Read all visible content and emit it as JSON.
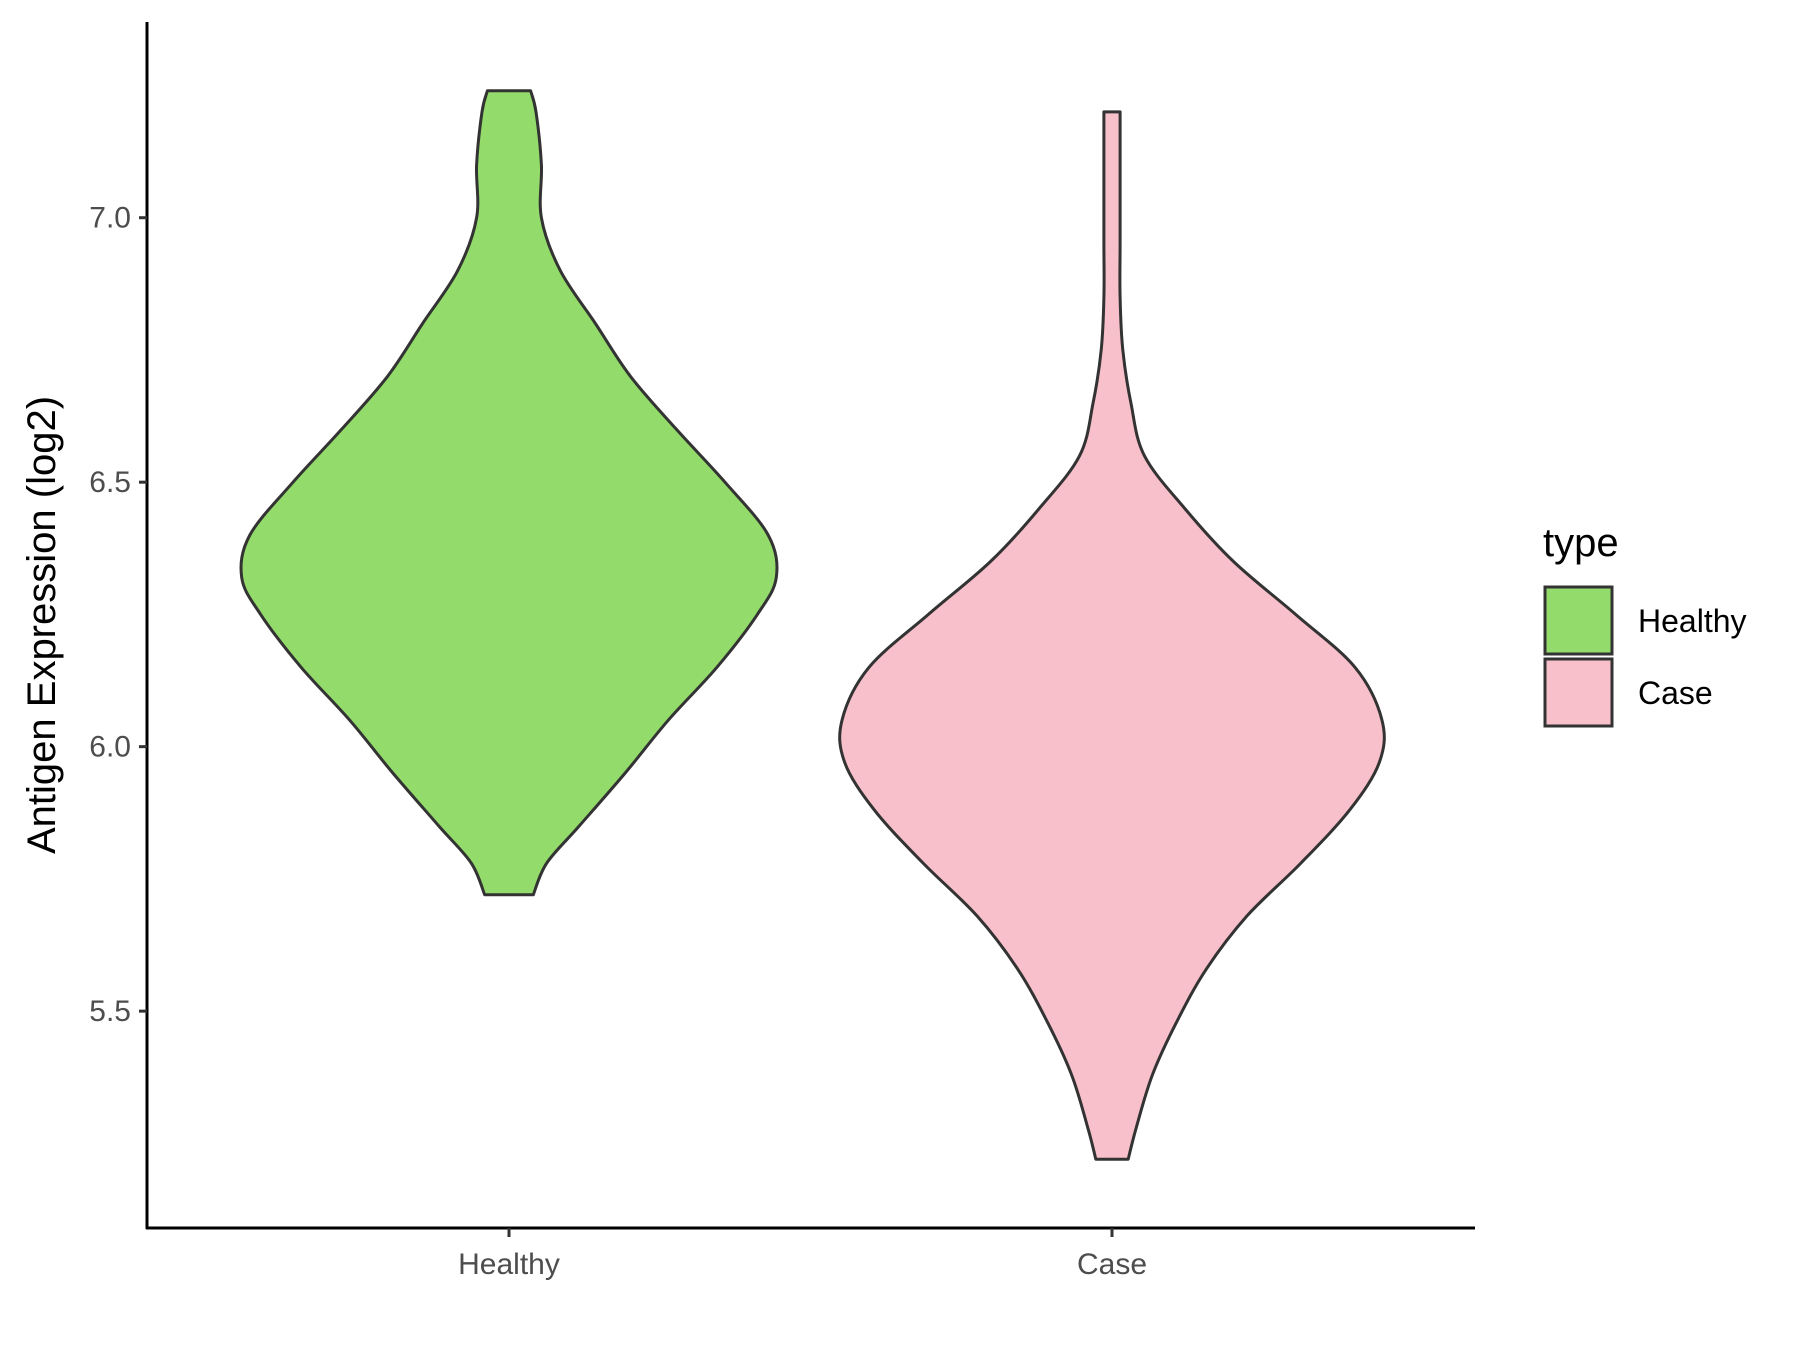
{
  "chart_data": {
    "type": "violin",
    "title": "",
    "xlabel": "",
    "ylabel": "Antigen Expression (log2)",
    "ylim": [
      5.09,
      7.37
    ],
    "yticks": [
      5.5,
      6.0,
      6.5,
      7.0
    ],
    "ytick_labels": [
      "5.5",
      "6.0",
      "6.5",
      "7.0"
    ],
    "categories": [
      "Healthy",
      "Case"
    ],
    "grid": false,
    "legend": {
      "title": "type",
      "placement": "right",
      "entries": [
        "Healthy",
        "Case"
      ]
    },
    "series": [
      {
        "name": "Healthy",
        "color": "#93dc6b",
        "min": 5.72,
        "max": 7.24,
        "density_profile": [
          [
            5.72,
            0.09
          ],
          [
            5.78,
            0.14
          ],
          [
            5.85,
            0.26
          ],
          [
            5.95,
            0.43
          ],
          [
            6.05,
            0.59
          ],
          [
            6.15,
            0.77
          ],
          [
            6.25,
            0.92
          ],
          [
            6.32,
            0.99
          ],
          [
            6.4,
            0.96
          ],
          [
            6.5,
            0.8
          ],
          [
            6.6,
            0.62
          ],
          [
            6.7,
            0.45
          ],
          [
            6.8,
            0.32
          ],
          [
            6.9,
            0.19
          ],
          [
            7.0,
            0.12
          ],
          [
            7.1,
            0.12
          ],
          [
            7.2,
            0.1
          ],
          [
            7.24,
            0.08
          ]
        ]
      },
      {
        "name": "Case",
        "color": "#f8c0cb",
        "min": 5.22,
        "max": 7.2,
        "density_profile": [
          [
            5.22,
            0.06
          ],
          [
            5.28,
            0.09
          ],
          [
            5.38,
            0.15
          ],
          [
            5.48,
            0.24
          ],
          [
            5.58,
            0.35
          ],
          [
            5.68,
            0.5
          ],
          [
            5.78,
            0.7
          ],
          [
            5.88,
            0.88
          ],
          [
            5.97,
            0.99
          ],
          [
            6.05,
            1.0
          ],
          [
            6.15,
            0.9
          ],
          [
            6.25,
            0.68
          ],
          [
            6.35,
            0.45
          ],
          [
            6.45,
            0.27
          ],
          [
            6.55,
            0.12
          ],
          [
            6.65,
            0.07
          ],
          [
            6.75,
            0.04
          ],
          [
            6.85,
            0.03
          ],
          [
            6.95,
            0.03
          ],
          [
            7.05,
            0.03
          ],
          [
            7.15,
            0.03
          ],
          [
            7.2,
            0.03
          ]
        ]
      }
    ]
  }
}
